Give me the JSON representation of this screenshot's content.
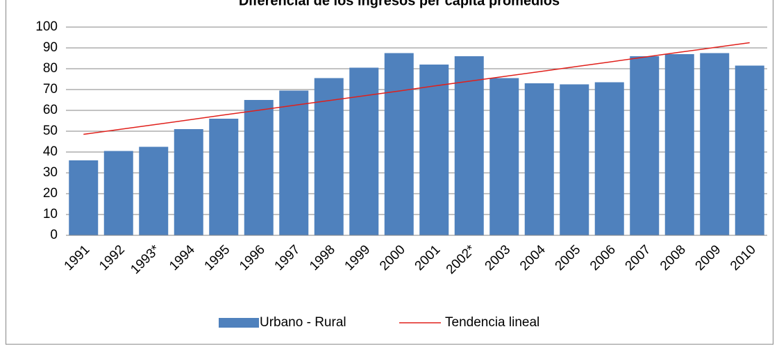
{
  "chart_data": {
    "type": "bar",
    "title": "Diferencial de los ingresos per cápita promedios",
    "categories": [
      "1991",
      "1992",
      "1993*",
      "1994",
      "1995",
      "1996",
      "1997",
      "1998",
      "1999",
      "2000",
      "2001",
      "2002*",
      "2003",
      "2004",
      "2005",
      "2006",
      "2007",
      "2008",
      "2009",
      "2010"
    ],
    "series": [
      {
        "name": "Urbano - Rural",
        "color": "#4f81bd",
        "type": "bar",
        "values": [
          36,
          40.5,
          42.5,
          51,
          56,
          65,
          69.5,
          75.5,
          80.5,
          87.5,
          82,
          86,
          75.5,
          73,
          72.5,
          73.5,
          86,
          87,
          87.5,
          81.5
        ]
      },
      {
        "name": "Tendencia lineal",
        "color": "#e0201b",
        "type": "line",
        "values": [
          48.5,
          50.8,
          53.1,
          55.4,
          57.8,
          60.1,
          62.4,
          64.7,
          67.0,
          69.3,
          71.7,
          74.0,
          76.3,
          78.6,
          80.9,
          83.2,
          85.6,
          87.9,
          90.2,
          92.5
        ]
      }
    ],
    "ylim": [
      0,
      100
    ],
    "yticks": [
      0,
      10,
      20,
      30,
      40,
      50,
      60,
      70,
      80,
      90,
      100
    ],
    "grid": true,
    "legend": "bottom"
  }
}
